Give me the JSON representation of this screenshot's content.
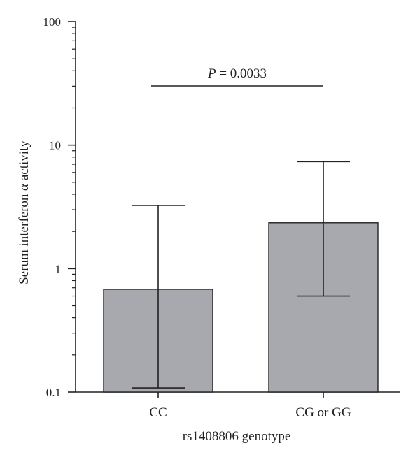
{
  "colors": {
    "bar_fill": "#a7a9ae",
    "axis": "#222222"
  },
  "chart_data": {
    "type": "bar",
    "title": "",
    "xlabel": "rs1408806 genotype",
    "ylabel_prefix": "Serum interferon ",
    "ylabel_symbol": "α",
    "ylabel_suffix": " activity",
    "yscale": "log",
    "ylim": [
      0.1,
      100
    ],
    "yticks": [
      0.1,
      1,
      10,
      100
    ],
    "ytick_labels": [
      "0.1",
      "1",
      "10",
      "100"
    ],
    "categories": [
      "CC",
      "CG or GG"
    ],
    "values": [
      0.68,
      2.35
    ],
    "error_low": [
      0.108,
      0.6
    ],
    "error_high": [
      3.25,
      7.35
    ],
    "annotation": {
      "p_symbol": "P",
      "p_rest": " = 0.0033"
    }
  }
}
